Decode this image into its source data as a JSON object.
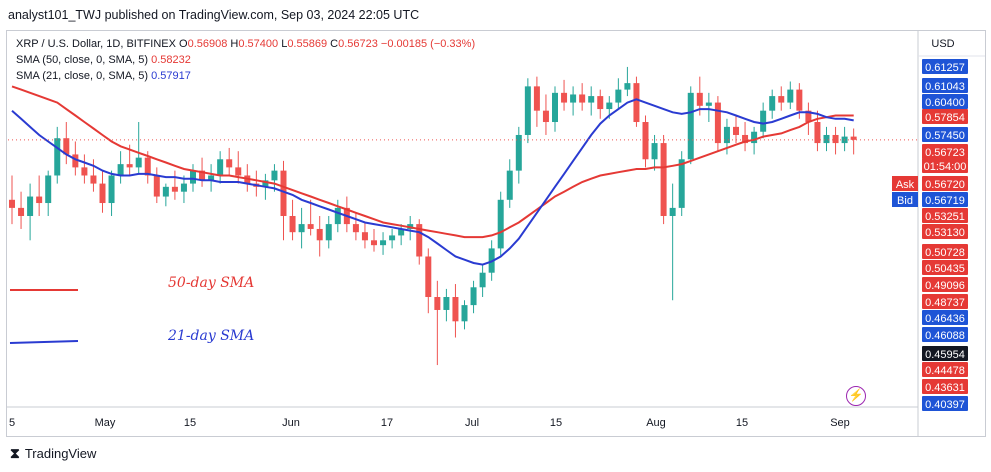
{
  "header": {
    "publisher": "analyst101_TWJ published on TradingView.com, Sep 03, 2024 22:05 UTC"
  },
  "legend": {
    "symbol": "XRP / U.S. Dollar, 1D, BITFINEX",
    "open_label": "O",
    "open": "0.56908",
    "high_label": "H",
    "high": "0.57400",
    "low_label": "L",
    "low": "0.55869",
    "close_label": "C",
    "close": "0.56723",
    "change": "−0.00185 (−0.33%)",
    "sma50_label": "SMA (50, close, 0, SMA, 5)",
    "sma50_value": "0.58232",
    "sma21_label": "SMA (21, close, 0, SMA, 5)",
    "sma21_value": "0.57917"
  },
  "currency_button": "USD",
  "annotations": {
    "sma50": "50-day SMA",
    "sma21": "21-day SMA"
  },
  "footer": {
    "brand": "TradingView"
  },
  "colors": {
    "up": "#26a69a",
    "down": "#ef5350",
    "sma50": "#e53935",
    "sma21": "#2a3bd1",
    "grid": "#f0f3fa"
  },
  "chart_data": {
    "type": "candlestick",
    "title": "XRP / U.S. Dollar, 1D, BITFINEX",
    "ylim": [
      0.40397,
      0.61257
    ],
    "y_tick_labels": [
      "0.61257",
      "0.61043",
      "0.60400",
      "0.57854",
      "0.57450",
      "0.56723",
      "0.56720",
      "0.56719",
      "0.53251",
      "0.53130",
      "0.50728",
      "0.50435",
      "0.49096",
      "0.48737",
      "0.46436",
      "0.46088",
      "0.45954",
      "0.44478",
      "0.43631",
      "0.40397"
    ],
    "x_tick_labels": [
      "5",
      "May",
      "15",
      "Jun",
      "17",
      "Jul",
      "15",
      "Aug",
      "15",
      "Sep"
    ],
    "current_price": {
      "value": "0.56723",
      "countdown": "01:54:00"
    },
    "ask": {
      "label": "Ask",
      "value": "0.56720"
    },
    "bid": {
      "label": "Bid",
      "value": "0.56719"
    },
    "highlighted_tag": "0.45954",
    "ohlc": [
      [
        0.53,
        0.545,
        0.515,
        0.525
      ],
      [
        0.525,
        0.535,
        0.512,
        0.52
      ],
      [
        0.52,
        0.54,
        0.505,
        0.532
      ],
      [
        0.532,
        0.545,
        0.52,
        0.528
      ],
      [
        0.528,
        0.548,
        0.52,
        0.545
      ],
      [
        0.545,
        0.575,
        0.54,
        0.568
      ],
      [
        0.568,
        0.578,
        0.552,
        0.558
      ],
      [
        0.558,
        0.566,
        0.545,
        0.55
      ],
      [
        0.55,
        0.558,
        0.54,
        0.545
      ],
      [
        0.545,
        0.555,
        0.535,
        0.54
      ],
      [
        0.54,
        0.548,
        0.522,
        0.528
      ],
      [
        0.528,
        0.548,
        0.52,
        0.545
      ],
      [
        0.545,
        0.56,
        0.54,
        0.552
      ],
      [
        0.552,
        0.564,
        0.545,
        0.55
      ],
      [
        0.55,
        0.578,
        0.546,
        0.556
      ],
      [
        0.556,
        0.56,
        0.54,
        0.545
      ],
      [
        0.545,
        0.55,
        0.528,
        0.532
      ],
      [
        0.532,
        0.54,
        0.526,
        0.538
      ],
      [
        0.538,
        0.548,
        0.53,
        0.535
      ],
      [
        0.535,
        0.545,
        0.528,
        0.54
      ],
      [
        0.54,
        0.552,
        0.535,
        0.548
      ],
      [
        0.548,
        0.556,
        0.538,
        0.542
      ],
      [
        0.542,
        0.552,
        0.535,
        0.545
      ],
      [
        0.545,
        0.56,
        0.54,
        0.555
      ],
      [
        0.555,
        0.562,
        0.545,
        0.55
      ],
      [
        0.55,
        0.56,
        0.54,
        0.545
      ],
      [
        0.545,
        0.552,
        0.535,
        0.54
      ],
      [
        0.54,
        0.548,
        0.532,
        0.538
      ],
      [
        0.538,
        0.546,
        0.53,
        0.542
      ],
      [
        0.542,
        0.552,
        0.535,
        0.548
      ],
      [
        0.548,
        0.554,
        0.505,
        0.52
      ],
      [
        0.52,
        0.53,
        0.505,
        0.51
      ],
      [
        0.51,
        0.525,
        0.5,
        0.515
      ],
      [
        0.515,
        0.53,
        0.508,
        0.512
      ],
      [
        0.512,
        0.52,
        0.495,
        0.505
      ],
      [
        0.505,
        0.52,
        0.5,
        0.515
      ],
      [
        0.515,
        0.53,
        0.51,
        0.525
      ],
      [
        0.525,
        0.532,
        0.51,
        0.515
      ],
      [
        0.515,
        0.522,
        0.505,
        0.51
      ],
      [
        0.51,
        0.516,
        0.5,
        0.505
      ],
      [
        0.505,
        0.512,
        0.498,
        0.502
      ],
      [
        0.502,
        0.51,
        0.496,
        0.505
      ],
      [
        0.505,
        0.512,
        0.5,
        0.508
      ],
      [
        0.508,
        0.515,
        0.502,
        0.512
      ],
      [
        0.512,
        0.52,
        0.505,
        0.515
      ],
      [
        0.515,
        0.518,
        0.49,
        0.495
      ],
      [
        0.495,
        0.5,
        0.46,
        0.47
      ],
      [
        0.47,
        0.48,
        0.428,
        0.462
      ],
      [
        0.462,
        0.475,
        0.455,
        0.47
      ],
      [
        0.47,
        0.478,
        0.445,
        0.455
      ],
      [
        0.455,
        0.468,
        0.45,
        0.465
      ],
      [
        0.465,
        0.48,
        0.46,
        0.476
      ],
      [
        0.476,
        0.49,
        0.47,
        0.485
      ],
      [
        0.485,
        0.505,
        0.48,
        0.5
      ],
      [
        0.5,
        0.535,
        0.495,
        0.53
      ],
      [
        0.53,
        0.555,
        0.525,
        0.548
      ],
      [
        0.548,
        0.575,
        0.54,
        0.57
      ],
      [
        0.57,
        0.605,
        0.565,
        0.6
      ],
      [
        0.6,
        0.606,
        0.575,
        0.585
      ],
      [
        0.585,
        0.595,
        0.57,
        0.578
      ],
      [
        0.578,
        0.6,
        0.572,
        0.596
      ],
      [
        0.596,
        0.604,
        0.585,
        0.59
      ],
      [
        0.59,
        0.6,
        0.582,
        0.595
      ],
      [
        0.595,
        0.602,
        0.585,
        0.59
      ],
      [
        0.59,
        0.6,
        0.582,
        0.594
      ],
      [
        0.594,
        0.598,
        0.58,
        0.586
      ],
      [
        0.586,
        0.594,
        0.58,
        0.59
      ],
      [
        0.59,
        0.605,
        0.586,
        0.598
      ],
      [
        0.598,
        0.612,
        0.594,
        0.602
      ],
      [
        0.602,
        0.606,
        0.575,
        0.578
      ],
      [
        0.578,
        0.582,
        0.55,
        0.555
      ],
      [
        0.555,
        0.57,
        0.548,
        0.565
      ],
      [
        0.565,
        0.57,
        0.515,
        0.52
      ],
      [
        0.52,
        0.54,
        0.468,
        0.525
      ],
      [
        0.525,
        0.56,
        0.52,
        0.555
      ],
      [
        0.555,
        0.6,
        0.552,
        0.596
      ],
      [
        0.596,
        0.606,
        0.582,
        0.588
      ],
      [
        0.588,
        0.596,
        0.578,
        0.59
      ],
      [
        0.59,
        0.594,
        0.56,
        0.565
      ],
      [
        0.565,
        0.58,
        0.558,
        0.575
      ],
      [
        0.575,
        0.582,
        0.565,
        0.57
      ],
      [
        0.57,
        0.578,
        0.56,
        0.565
      ],
      [
        0.565,
        0.575,
        0.558,
        0.572
      ],
      [
        0.572,
        0.59,
        0.568,
        0.585
      ],
      [
        0.585,
        0.598,
        0.58,
        0.594
      ],
      [
        0.594,
        0.6,
        0.585,
        0.59
      ],
      [
        0.59,
        0.603,
        0.586,
        0.598
      ],
      [
        0.598,
        0.602,
        0.58,
        0.585
      ],
      [
        0.585,
        0.59,
        0.57,
        0.578
      ],
      [
        0.578,
        0.585,
        0.56,
        0.565
      ],
      [
        0.565,
        0.575,
        0.56,
        0.57
      ],
      [
        0.57,
        0.575,
        0.558,
        0.565
      ],
      [
        0.565,
        0.575,
        0.56,
        0.569
      ],
      [
        0.569,
        0.574,
        0.558,
        0.567
      ]
    ],
    "sma50": [
      0.6,
      0.598,
      0.596,
      0.594,
      0.592,
      0.59,
      0.586,
      0.582,
      0.578,
      0.574,
      0.57,
      0.566,
      0.563,
      0.561,
      0.559,
      0.557,
      0.555,
      0.553,
      0.551,
      0.549,
      0.548,
      0.547,
      0.546,
      0.545,
      0.545,
      0.544,
      0.543,
      0.542,
      0.541,
      0.54,
      0.538,
      0.536,
      0.534,
      0.532,
      0.53,
      0.528,
      0.526,
      0.524,
      0.522,
      0.52,
      0.518,
      0.516,
      0.515,
      0.514,
      0.513,
      0.512,
      0.511,
      0.51,
      0.509,
      0.508,
      0.507,
      0.507,
      0.507,
      0.508,
      0.51,
      0.513,
      0.516,
      0.52,
      0.524,
      0.528,
      0.532,
      0.535,
      0.538,
      0.541,
      0.543,
      0.545,
      0.546,
      0.547,
      0.548,
      0.549,
      0.549,
      0.55,
      0.55,
      0.551,
      0.552,
      0.554,
      0.556,
      0.558,
      0.56,
      0.562,
      0.564,
      0.566,
      0.567,
      0.569,
      0.57,
      0.571,
      0.573,
      0.575,
      0.578,
      0.58,
      0.581,
      0.582,
      0.582,
      0.582
    ],
    "sma21": [
      0.585,
      0.58,
      0.575,
      0.57,
      0.566,
      0.562,
      0.558,
      0.555,
      0.553,
      0.551,
      0.548,
      0.546,
      0.545,
      0.545,
      0.546,
      0.546,
      0.545,
      0.544,
      0.544,
      0.543,
      0.543,
      0.542,
      0.542,
      0.541,
      0.541,
      0.541,
      0.54,
      0.539,
      0.538,
      0.537,
      0.535,
      0.533,
      0.53,
      0.528,
      0.526,
      0.524,
      0.522,
      0.52,
      0.518,
      0.516,
      0.515,
      0.514,
      0.513,
      0.512,
      0.511,
      0.51,
      0.507,
      0.503,
      0.499,
      0.495,
      0.493,
      0.491,
      0.49,
      0.492,
      0.495,
      0.5,
      0.506,
      0.514,
      0.522,
      0.53,
      0.538,
      0.546,
      0.554,
      0.562,
      0.57,
      0.577,
      0.582,
      0.586,
      0.59,
      0.592,
      0.59,
      0.588,
      0.586,
      0.584,
      0.583,
      0.584,
      0.586,
      0.586,
      0.585,
      0.584,
      0.582,
      0.58,
      0.578,
      0.577,
      0.578,
      0.58,
      0.582,
      0.584,
      0.584,
      0.583,
      0.581,
      0.58,
      0.58,
      0.579
    ]
  }
}
